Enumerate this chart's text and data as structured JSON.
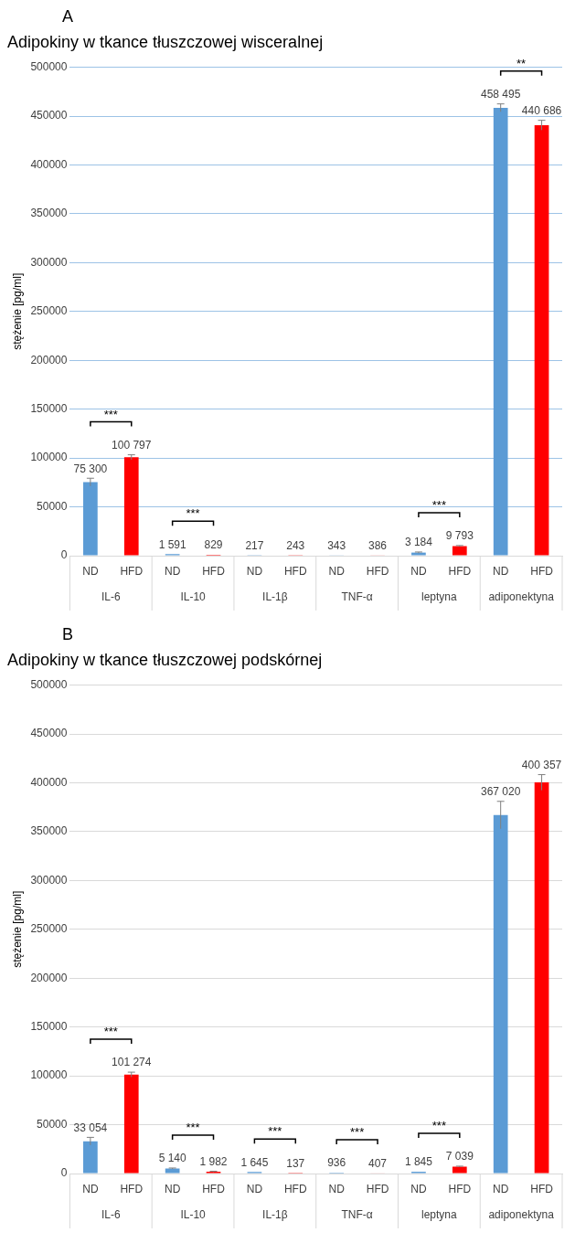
{
  "chart_data": [
    {
      "type": "bar",
      "title": "Adipokiny w tkance tłuszczowej wisceralnej",
      "ylabel": "stężenie [pg/ml]",
      "categories": [
        "IL-6",
        "IL-10",
        "IL-1β",
        "TNF-α",
        "leptyna",
        "adiponektyna"
      ],
      "series": [
        {
          "name": "ND",
          "color": "#5b9bd5",
          "values": [
            75300,
            1591,
            217,
            343,
            3184,
            458495
          ],
          "value_labels": [
            "75 300",
            "1 591",
            "217",
            "343",
            "3 184",
            "458 495"
          ],
          "errors": [
            4000,
            null,
            null,
            null,
            600,
            4000
          ]
        },
        {
          "name": "HFD",
          "color": "#ff0000",
          "values": [
            100797,
            829,
            243,
            386,
            9793,
            440686
          ],
          "value_labels": [
            "100 797",
            "829",
            "243",
            "386",
            "9 793",
            "440 686"
          ],
          "errors": [
            2500,
            null,
            null,
            null,
            600,
            5000
          ]
        }
      ],
      "ylim": [
        0,
        500000
      ],
      "yticks": [
        0,
        50000,
        100000,
        150000,
        200000,
        250000,
        300000,
        350000,
        400000,
        450000,
        500000
      ],
      "grid": "y",
      "annotations": [
        "A",
        "***",
        "***",
        "***",
        "**"
      ]
    },
    {
      "type": "bar",
      "title": "Adipokiny w tkance tłuszczowej podskórnej",
      "ylabel": "stężenie [pg/ml]",
      "categories": [
        "IL-6",
        "IL-10",
        "IL-1β",
        "TNF-α",
        "leptyna",
        "adiponektyna"
      ],
      "series": [
        {
          "name": "ND",
          "color": "#5b9bd5",
          "values": [
            33054,
            5140,
            1645,
            936,
            1845,
            367020
          ],
          "value_labels": [
            "33 054",
            "5 140",
            "1 645",
            "936",
            "1 845",
            "367 020"
          ],
          "errors": [
            4000,
            500,
            null,
            null,
            null,
            14000
          ]
        },
        {
          "name": "HFD",
          "color": "#ff0000",
          "values": [
            101274,
            1982,
            137,
            407,
            7039,
            400357
          ],
          "value_labels": [
            "101 274",
            "1 982",
            "137",
            "407",
            "7 039",
            "400 357"
          ],
          "errors": [
            2500,
            400,
            null,
            null,
            500,
            8000
          ]
        }
      ],
      "ylim": [
        0,
        500000
      ],
      "yticks": [
        0,
        50000,
        100000,
        150000,
        200000,
        250000,
        300000,
        350000,
        400000,
        450000,
        500000
      ],
      "grid": "y",
      "annotations": [
        "B",
        "***",
        "***",
        "***",
        "***",
        "***"
      ]
    }
  ]
}
